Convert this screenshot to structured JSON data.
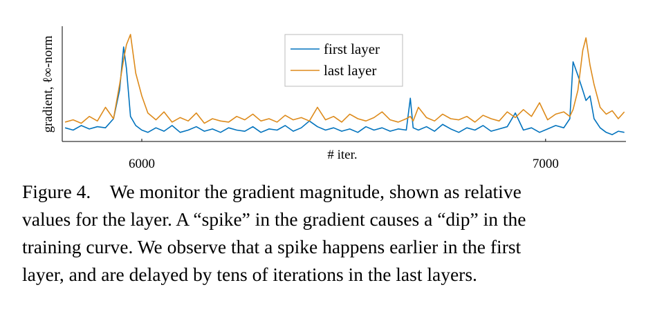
{
  "chart_data": {
    "type": "line",
    "xlabel": "# iter.",
    "ylabel": "gradient, ℓ∞-norm",
    "x": [
      5810,
      5830,
      5850,
      5870,
      5890,
      5910,
      5930,
      5945,
      5955,
      5962,
      5972,
      5985,
      6000,
      6015,
      6035,
      6055,
      6075,
      6095,
      6115,
      6135,
      6155,
      6175,
      6195,
      6215,
      6235,
      6255,
      6275,
      6295,
      6315,
      6335,
      6355,
      6375,
      6395,
      6415,
      6435,
      6455,
      6475,
      6495,
      6515,
      6535,
      6555,
      6575,
      6595,
      6615,
      6635,
      6655,
      6665,
      6672,
      6685,
      6705,
      6725,
      6745,
      6765,
      6785,
      6805,
      6825,
      6845,
      6865,
      6885,
      6905,
      6925,
      6945,
      6965,
      6985,
      7005,
      7025,
      7045,
      7060,
      7068,
      7080,
      7092,
      7100,
      7110,
      7120,
      7135,
      7150,
      7165,
      7180,
      7195
    ],
    "series": [
      {
        "name": "first layer",
        "color": "#0072bd",
        "values": [
          0.12,
          0.1,
          0.14,
          0.11,
          0.13,
          0.12,
          0.2,
          0.45,
          0.83,
          0.64,
          0.22,
          0.14,
          0.1,
          0.08,
          0.12,
          0.09,
          0.14,
          0.08,
          0.1,
          0.13,
          0.09,
          0.11,
          0.08,
          0.12,
          0.1,
          0.09,
          0.13,
          0.08,
          0.11,
          0.1,
          0.14,
          0.09,
          0.12,
          0.18,
          0.13,
          0.1,
          0.12,
          0.09,
          0.11,
          0.08,
          0.13,
          0.1,
          0.12,
          0.09,
          0.11,
          0.1,
          0.38,
          0.12,
          0.1,
          0.13,
          0.09,
          0.15,
          0.11,
          0.08,
          0.12,
          0.1,
          0.14,
          0.09,
          0.11,
          0.13,
          0.25,
          0.1,
          0.12,
          0.08,
          0.11,
          0.14,
          0.12,
          0.2,
          0.7,
          0.58,
          0.45,
          0.36,
          0.4,
          0.2,
          0.12,
          0.08,
          0.06,
          0.09,
          0.08
        ]
      },
      {
        "name": "last layer",
        "color": "#dd8a1a",
        "values": [
          0.17,
          0.19,
          0.16,
          0.22,
          0.18,
          0.3,
          0.2,
          0.5,
          0.72,
          0.85,
          0.94,
          0.6,
          0.4,
          0.25,
          0.19,
          0.26,
          0.17,
          0.21,
          0.18,
          0.25,
          0.16,
          0.2,
          0.18,
          0.17,
          0.22,
          0.19,
          0.24,
          0.18,
          0.2,
          0.17,
          0.23,
          0.19,
          0.21,
          0.18,
          0.3,
          0.19,
          0.22,
          0.17,
          0.24,
          0.2,
          0.18,
          0.21,
          0.26,
          0.19,
          0.17,
          0.2,
          0.22,
          0.18,
          0.3,
          0.21,
          0.18,
          0.24,
          0.2,
          0.19,
          0.22,
          0.17,
          0.23,
          0.2,
          0.18,
          0.26,
          0.21,
          0.28,
          0.22,
          0.34,
          0.19,
          0.24,
          0.26,
          0.22,
          0.28,
          0.45,
          0.8,
          0.91,
          0.67,
          0.5,
          0.3,
          0.24,
          0.27,
          0.2,
          0.26
        ]
      }
    ],
    "xlim": [
      5803,
      7199
    ],
    "xticks": [
      6000,
      7000
    ],
    "ylim": [
      0,
      1
    ],
    "legend": "upper center"
  },
  "caption": [
    "Figure 4. We monitor the gradient magnitude, shown as relative",
    "values for the layer. A “spike” in the gradient causes a “dip” in the",
    "training curve. We observe that a spike happens earlier in the first",
    "layer, and are delayed by tens of iterations in the last layers."
  ]
}
